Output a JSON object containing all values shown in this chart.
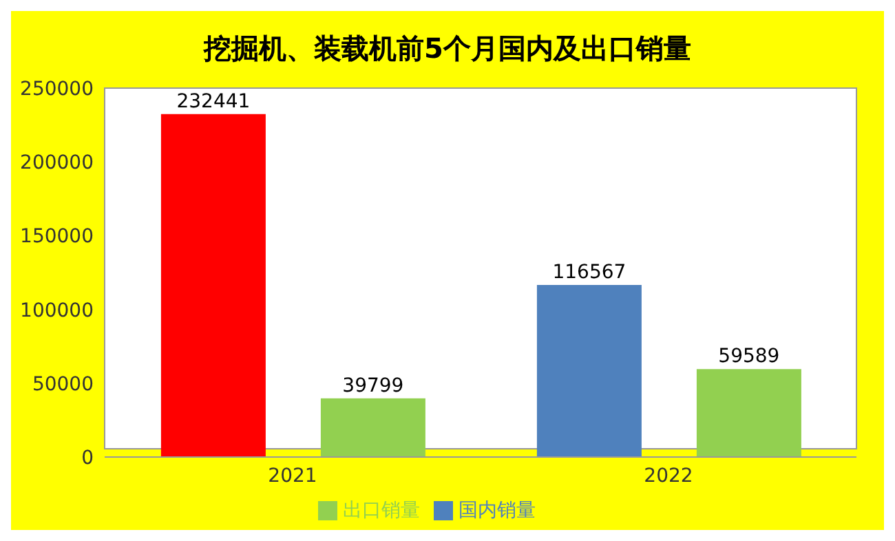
{
  "chart_data": {
    "type": "bar",
    "title": "挖掘机、装载机前5个月国内及出口销量",
    "categories": [
      "2021",
      "2022"
    ],
    "series": [
      {
        "name": "国内销量",
        "color": "#4f81bd",
        "colors": [
          "#ff0000",
          "#4f81bd"
        ],
        "values": [
          232441,
          116567
        ]
      },
      {
        "name": "出口销量",
        "color": "#92d050",
        "values": [
          39799,
          59589
        ]
      }
    ],
    "ylim": [
      0,
      250000
    ],
    "yticks": [
      0,
      50000,
      100000,
      150000,
      200000,
      250000
    ],
    "grid": false,
    "legend": "bottom",
    "data_labels": true
  }
}
